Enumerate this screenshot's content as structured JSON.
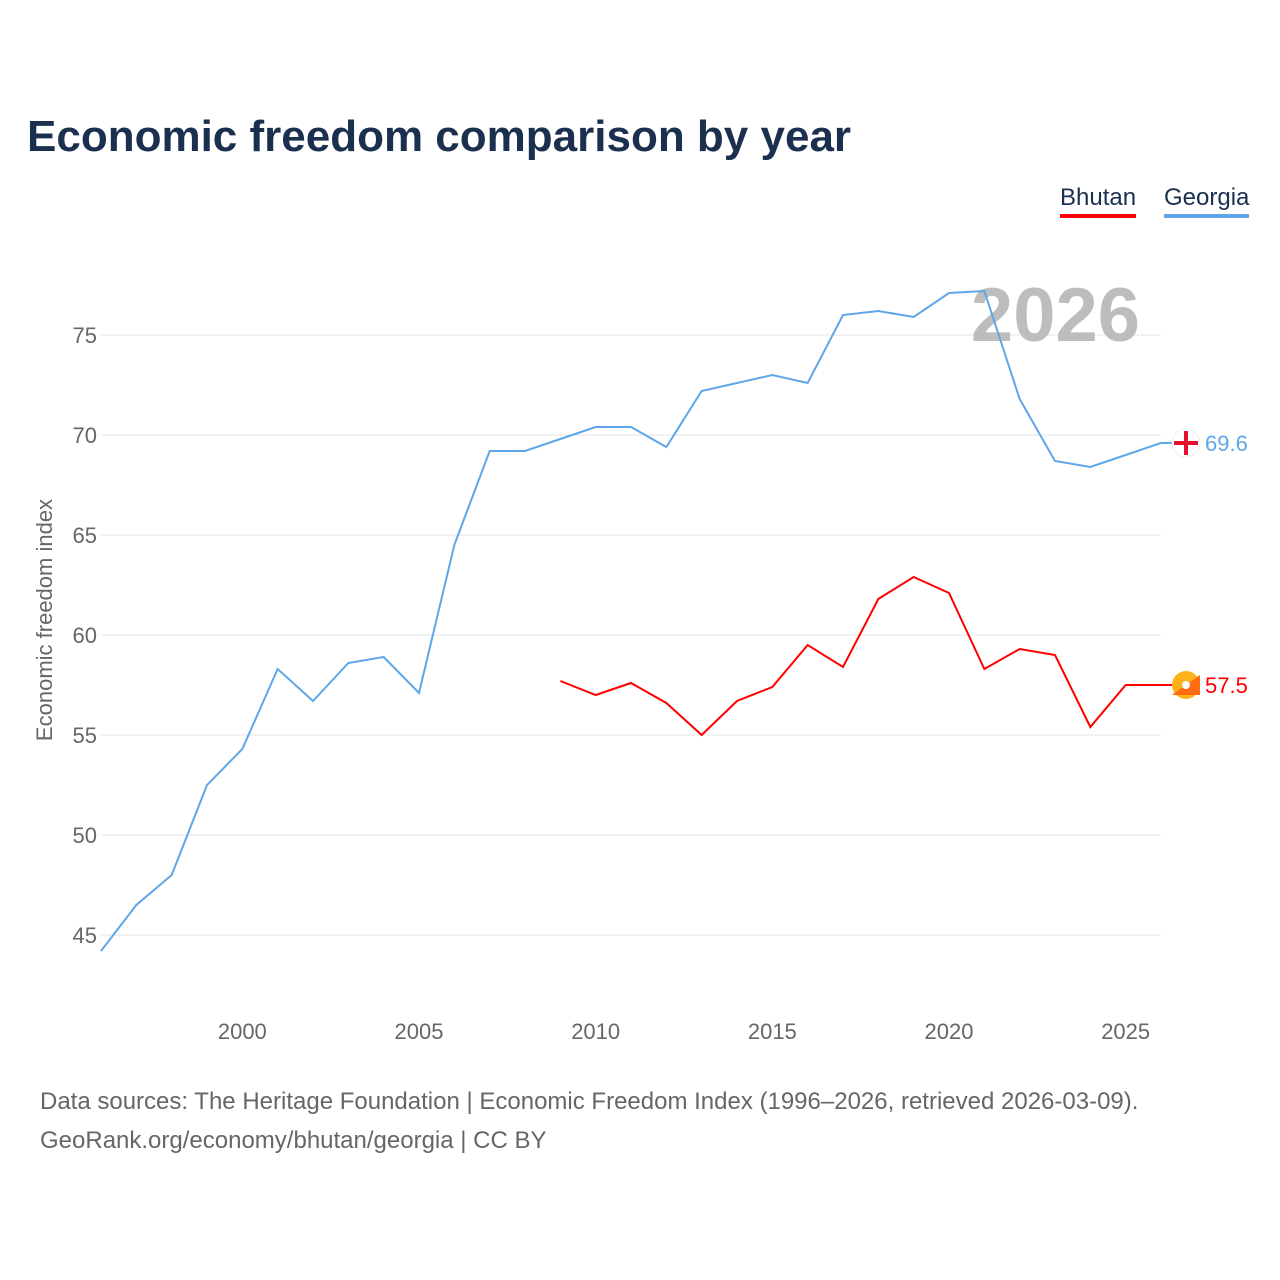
{
  "title": "Economic freedom comparison by year",
  "legend": [
    {
      "name": "Bhutan",
      "color": "#ff0000"
    },
    {
      "name": "Georgia",
      "color": "#5ea6e8"
    }
  ],
  "year_watermark": "2026",
  "source_line1": "Data sources: The Heritage Foundation | Economic Freedom Index (1996–2026, retrieved 2026-03-09).",
  "source_line2": "GeoRank.org/economy/bhutan/georgia | CC BY",
  "chart_data": {
    "type": "line",
    "title": "Economic freedom comparison by year",
    "xlabel": "",
    "ylabel": "Economic freedom index",
    "xlim": [
      1996,
      2026
    ],
    "ylim": [
      41.5,
      78.5
    ],
    "xticks": [
      2000,
      2005,
      2010,
      2015,
      2020,
      2025
    ],
    "yticks": [
      45,
      50,
      55,
      60,
      65,
      70,
      75
    ],
    "grid": true,
    "legend_position": "top-right",
    "series": [
      {
        "name": "Georgia",
        "color": "#5ea6e8",
        "end_label": "69.6",
        "x": [
          1996,
          1997,
          1998,
          1999,
          2000,
          2001,
          2002,
          2003,
          2004,
          2005,
          2006,
          2007,
          2008,
          2009,
          2010,
          2011,
          2012,
          2013,
          2014,
          2015,
          2016,
          2017,
          2018,
          2019,
          2020,
          2021,
          2022,
          2023,
          2024,
          2025,
          2026
        ],
        "values": [
          44.2,
          46.5,
          48.0,
          52.5,
          54.3,
          58.3,
          56.7,
          58.6,
          58.9,
          57.1,
          64.5,
          69.2,
          69.2,
          69.8,
          70.4,
          70.4,
          69.4,
          72.2,
          72.6,
          73.0,
          72.6,
          76.0,
          76.2,
          75.9,
          77.1,
          77.2,
          71.8,
          68.7,
          68.4,
          69.0,
          69.6
        ]
      },
      {
        "name": "Bhutan",
        "color": "#ff0000",
        "end_label": "57.5",
        "x": [
          2009,
          2010,
          2011,
          2012,
          2013,
          2014,
          2015,
          2016,
          2017,
          2018,
          2019,
          2020,
          2021,
          2022,
          2023,
          2024,
          2025,
          2026
        ],
        "values": [
          57.7,
          57.0,
          57.6,
          56.6,
          55.0,
          56.7,
          57.4,
          59.5,
          58.4,
          61.8,
          62.9,
          62.1,
          58.3,
          59.3,
          59.0,
          55.4,
          57.5,
          57.5
        ]
      }
    ]
  }
}
